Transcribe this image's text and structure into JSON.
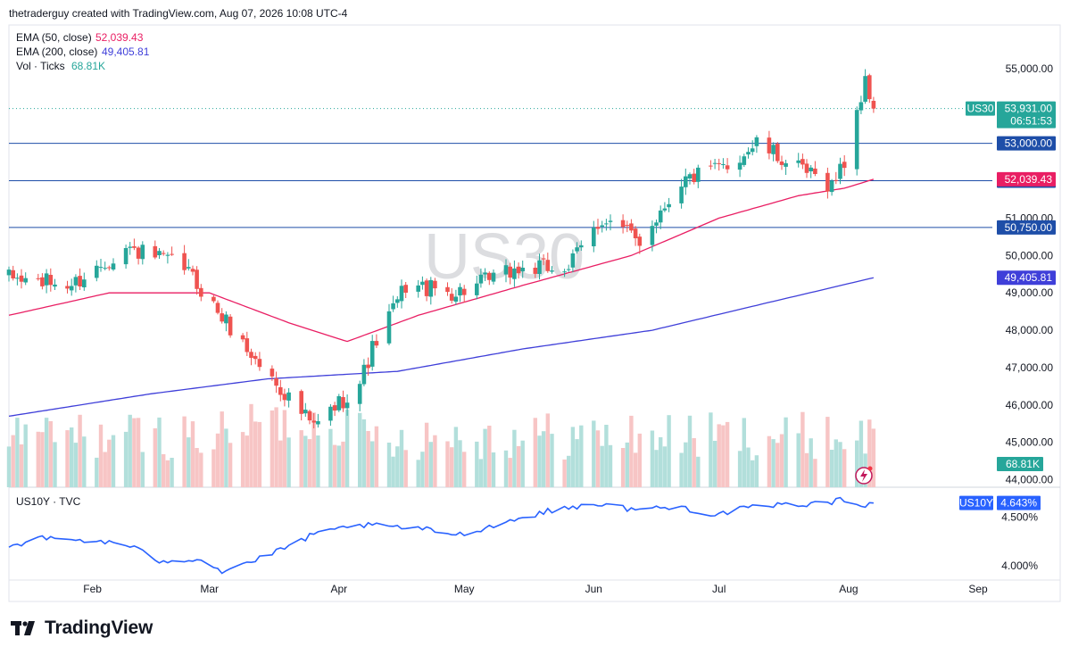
{
  "header": {
    "attribution": "thetraderguy created with TradingView.com, Aug 07, 2026 10:08 UTC-4"
  },
  "brand": {
    "name": "TradingView"
  },
  "main_pane": {
    "symbol_watermark": "US30",
    "legend": [
      {
        "name": "EMA (50, close)",
        "value": "52,039.43",
        "color": "#e91e63"
      },
      {
        "name": "EMA (200, close)",
        "value": "49,405.81",
        "color": "#3f3fd9"
      },
      {
        "name": "Vol · Ticks",
        "value": "68.81K",
        "color": "#26a69a"
      }
    ],
    "price_ticks": [
      "55,000.00",
      "51,000.00",
      "50,000.00",
      "49,000.00",
      "48,000.00",
      "47,000.00",
      "46,000.00",
      "45,000.00",
      "44,000.00"
    ],
    "horizontal_lines": [
      "53,000.00",
      "52,000.00",
      "50,750.00"
    ],
    "last_price": {
      "symbol": "US30",
      "price": "53,931.00",
      "countdown": "06:51:53"
    },
    "ema50_label": "52,039.43",
    "ema200_label": "49,405.81",
    "volume_label": "68.81K"
  },
  "sub_pane": {
    "title": "US10Y · TVC",
    "symbol": "US10Y",
    "last_value": "4.643%",
    "ticks": [
      "4.500%",
      "4.000%"
    ]
  },
  "x_axis": {
    "labels": [
      "Feb",
      "Mar",
      "Apr",
      "May",
      "Jun",
      "Jul",
      "Aug",
      "Sep"
    ]
  },
  "colors": {
    "up": "#26a69a",
    "down": "#ef5350",
    "up_vol": "#b2dfdb",
    "down_vol": "#f7c5c5",
    "ema50": "#e91e63",
    "ema200": "#3f3fd9",
    "hline": "#1e4ea8",
    "us10y": "#2962ff"
  },
  "chart_data": {
    "type": "candlestick",
    "title": "US30",
    "ylim": [
      43800,
      56000
    ],
    "x_range": [
      "2026-01-12",
      "2026-09-04"
    ],
    "anchors": [
      [
        "2026-01-12",
        49400
      ],
      [
        "2026-01-27",
        49200
      ],
      [
        "2026-02-09",
        50200
      ],
      [
        "2026-02-23",
        49700
      ],
      [
        "2026-03-03",
        48500
      ],
      [
        "2026-03-12",
        47200
      ],
      [
        "2026-03-20",
        46200
      ],
      [
        "2026-03-26",
        45400
      ],
      [
        "2026-04-06",
        46600
      ],
      [
        "2026-04-09",
        47500
      ],
      [
        "2026-04-17",
        49200
      ],
      [
        "2026-04-29",
        49000
      ],
      [
        "2026-05-13",
        49600
      ],
      [
        "2026-05-26",
        49700
      ],
      [
        "2026-06-03",
        51000
      ],
      [
        "2026-06-12",
        50400
      ],
      [
        "2026-06-22",
        52000
      ],
      [
        "2026-07-03",
        52400
      ],
      [
        "2026-07-10",
        53000
      ],
      [
        "2026-07-20",
        52300
      ],
      [
        "2026-07-28",
        51900
      ],
      [
        "2026-07-31",
        52500
      ],
      [
        "2026-08-03",
        53900
      ],
      [
        "2026-08-05",
        54600
      ],
      [
        "2026-08-07",
        53931
      ]
    ],
    "ema50": {
      "name": "EMA (50, close)",
      "last": 52039.43,
      "points": [
        [
          "2026-01-12",
          48400
        ],
        [
          "2026-02-05",
          49000
        ],
        [
          "2026-03-01",
          49000
        ],
        [
          "2026-03-20",
          48200
        ],
        [
          "2026-04-03",
          47700
        ],
        [
          "2026-04-20",
          48400
        ],
        [
          "2026-05-15",
          49200
        ],
        [
          "2026-06-10",
          50000
        ],
        [
          "2026-07-01",
          51000
        ],
        [
          "2026-07-20",
          51600
        ],
        [
          "2026-07-31",
          51800
        ],
        [
          "2026-08-07",
          52039
        ]
      ]
    },
    "ema200": {
      "name": "EMA (200, close)",
      "last": 49405.81,
      "points": [
        [
          "2026-01-12",
          45700
        ],
        [
          "2026-02-15",
          46300
        ],
        [
          "2026-03-15",
          46700
        ],
        [
          "2026-04-15",
          46900
        ],
        [
          "2026-05-15",
          47500
        ],
        [
          "2026-06-15",
          48000
        ],
        [
          "2026-07-15",
          48800
        ],
        [
          "2026-08-07",
          49405
        ]
      ]
    },
    "volume": {
      "name": "Vol · Ticks",
      "last": "68.81K",
      "max_ticks": 105000
    },
    "us10y": {
      "name": "US10Y · TVC",
      "ylim": [
        3.87,
        4.75
      ],
      "last": 4.643,
      "points": [
        [
          "2026-01-12",
          4.2
        ],
        [
          "2026-01-20",
          4.28
        ],
        [
          "2026-02-03",
          4.25
        ],
        [
          "2026-02-10",
          4.2
        ],
        [
          "2026-02-17",
          4.05
        ],
        [
          "2026-02-27",
          4.07
        ],
        [
          "2026-03-04",
          3.94
        ],
        [
          "2026-03-15",
          4.1
        ],
        [
          "2026-03-25",
          4.3
        ],
        [
          "2026-04-05",
          4.42
        ],
        [
          "2026-04-20",
          4.38
        ],
        [
          "2026-04-30",
          4.32
        ],
        [
          "2026-05-12",
          4.46
        ],
        [
          "2026-05-20",
          4.55
        ],
        [
          "2026-06-01",
          4.64
        ],
        [
          "2026-06-10",
          4.58
        ],
        [
          "2026-06-22",
          4.6
        ],
        [
          "2026-06-30",
          4.52
        ],
        [
          "2026-07-06",
          4.58
        ],
        [
          "2026-07-15",
          4.62
        ],
        [
          "2026-07-25",
          4.64
        ],
        [
          "2026-08-01",
          4.68
        ],
        [
          "2026-08-05",
          4.62
        ],
        [
          "2026-08-07",
          4.643
        ]
      ]
    }
  }
}
